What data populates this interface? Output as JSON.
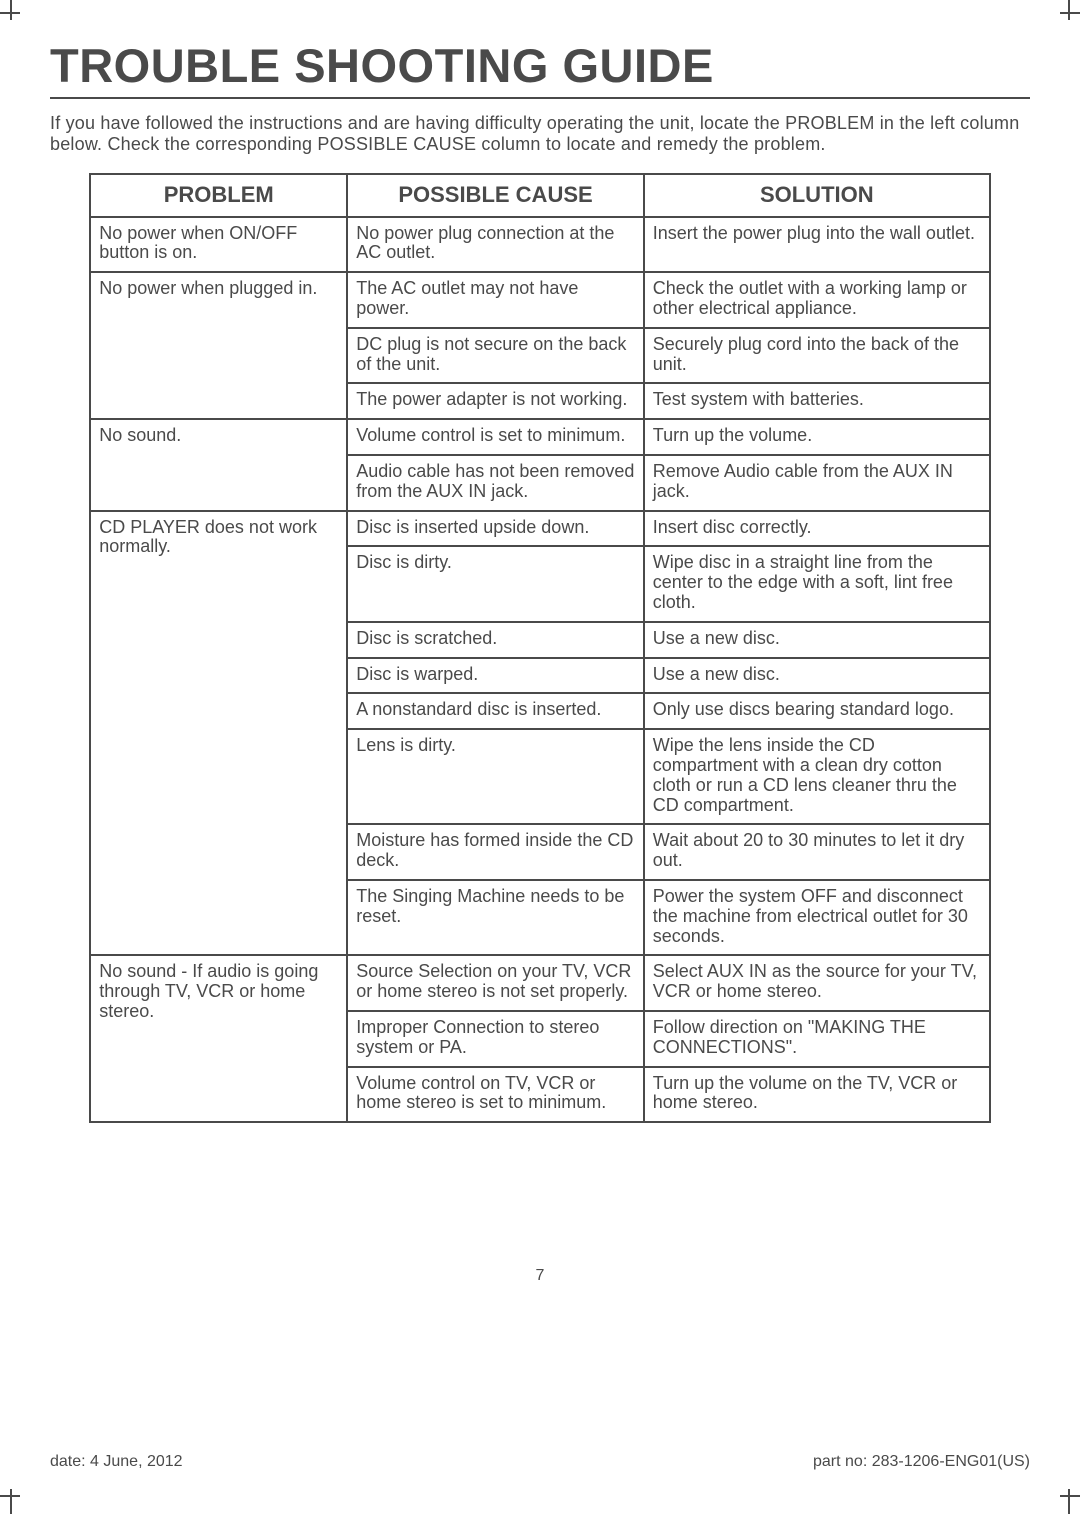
{
  "title": "TROUBLE SHOOTING GUIDE",
  "intro": "If you have followed the instructions and are having difficulty operating the unit, locate the PROBLEM in the left column below. Check the corresponding POSSIBLE CAUSE column to locate and remedy the problem.",
  "headers": {
    "problem": "PROBLEM",
    "cause": "POSSIBLE CAUSE",
    "solution": "SOLUTION"
  },
  "groups": [
    {
      "problem": "No power when ON/OFF button is on.",
      "rows": [
        {
          "cause": "No power plug connection at the AC outlet.",
          "solution": "Insert the power plug into the wall outlet."
        }
      ]
    },
    {
      "problem": "No power when plugged in.",
      "rows": [
        {
          "cause": "The AC outlet may not have power.",
          "solution": "Check the outlet with a working lamp or other electrical appliance."
        },
        {
          "cause": "DC plug is not secure on the back of the unit.",
          "solution": "Securely plug cord into the back of the unit."
        },
        {
          "cause": "The power adapter is not working.",
          "solution": "Test system with batteries."
        }
      ]
    },
    {
      "problem": "No sound.",
      "rows": [
        {
          "cause": "Volume control is set to minimum.",
          "solution": "Turn up the volume."
        },
        {
          "cause": "Audio cable has not been removed from the AUX IN jack.",
          "solution": "Remove Audio cable from the AUX IN jack."
        }
      ]
    },
    {
      "problem": "CD PLAYER does not work normally.",
      "rows": [
        {
          "cause": "Disc is inserted upside down.",
          "solution": "Insert disc correctly."
        },
        {
          "cause": "Disc is dirty.",
          "solution": "Wipe disc in a straight line from the center to the edge with a soft, lint free cloth."
        },
        {
          "cause": "Disc is scratched.",
          "solution": "Use a new disc."
        },
        {
          "cause": "Disc is warped.",
          "solution": "Use a new disc."
        },
        {
          "cause": "A nonstandard disc is inserted.",
          "solution": "Only use discs bearing standard logo."
        },
        {
          "cause": "Lens is dirty.",
          "solution": "Wipe the lens inside the CD compartment with a clean dry cotton cloth or run a CD lens cleaner thru the CD compartment."
        },
        {
          "cause": "Moisture has formed inside the CD deck.",
          "solution": "Wait about 20 to 30 minutes to let it dry out."
        },
        {
          "cause": "The Singing Machine needs to be reset.",
          "solution": "Power the system OFF and disconnect the machine from electrical outlet for 30 seconds."
        }
      ]
    },
    {
      "problem": "No sound - If audio is going through TV, VCR or home stereo.",
      "rows": [
        {
          "cause": "Source Selection on your TV, VCR or home stereo is not set properly.",
          "solution": "Select AUX IN as the source for your TV, VCR or home stereo."
        },
        {
          "cause": "Improper Connection to stereo system or PA.",
          "solution": "Follow direction on \"MAKING THE CONNECTIONS\"."
        },
        {
          "cause": "Volume control on TV, VCR or home stereo is set to minimum.",
          "solution": "Turn up the volume on the TV, VCR or home stereo."
        }
      ]
    }
  ],
  "page_number": "7",
  "footer_date": "date: 4 June, 2012",
  "footer_partno": "part no: 283-1206-ENG01(US)"
}
